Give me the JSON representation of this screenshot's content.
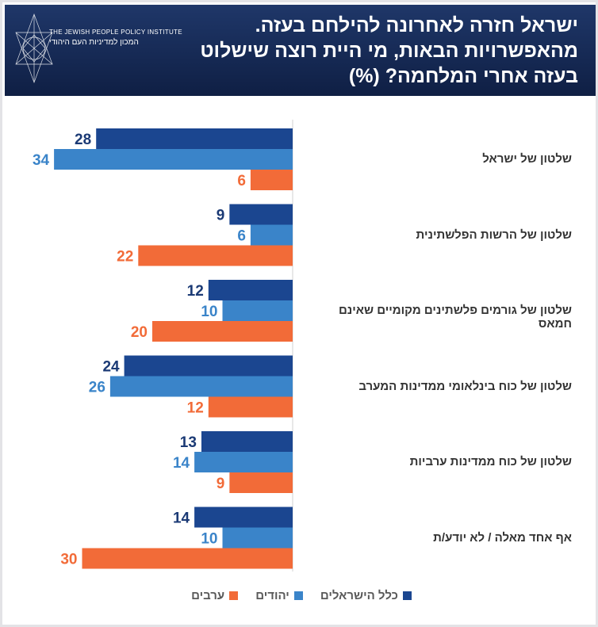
{
  "header": {
    "title_lines": [
      "ישראל חזרה לאחרונה להילחם בעזה.",
      "מהאפשרויות הבאות, מי היית רוצה שישלוט",
      "בעזה אחרי המלחמה? (%)"
    ],
    "logo_en": "THE JEWISH PEOPLE POLICY INSTITUTE",
    "logo_he": "המכון למדיניות העם היהודי"
  },
  "chart_data": {
    "type": "bar",
    "orientation": "horizontal",
    "title": "ישראל חזרה לאחרונה להילחם בעזה. מהאפשרויות הבאות, מי היית רוצה שישלוט בעזה אחרי המלחמה? (%)",
    "categories": [
      "שלטון של ישראל",
      "שלטון של הרשות הפלשתינית",
      "שלטון של גורמים פלשתינים מקומיים שאינם חמאס",
      "שלטון של כוח בינלאומי ממדינות המערב",
      "שלטון של כוח ממדינות ערביות",
      "אף אחד מאלה / לא יודע/ת"
    ],
    "series": [
      {
        "name": "כלל הישראלים",
        "color": "#1b4690",
        "values": [
          28,
          9,
          12,
          24,
          13,
          14
        ]
      },
      {
        "name": "יהודים",
        "color": "#3a84c9",
        "values": [
          34,
          6,
          10,
          26,
          14,
          10
        ]
      },
      {
        "name": "ערבים",
        "color": "#f26b38",
        "values": [
          6,
          22,
          20,
          12,
          9,
          30
        ]
      }
    ],
    "xlim": [
      0,
      34
    ],
    "grid": false,
    "legend": "bottom",
    "data_labels": true
  }
}
